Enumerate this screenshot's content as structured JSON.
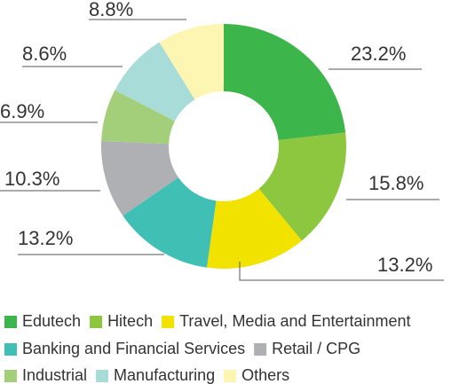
{
  "chart_data": {
    "type": "donut",
    "categories": [
      "Edutech",
      "Hitech",
      "Travel, Media and Entertainment",
      "Banking and Financial Services",
      "Retail / CPG",
      "Industrial",
      "Manufacturing",
      "Others"
    ],
    "values": [
      23.2,
      15.8,
      13.2,
      13.2,
      10.3,
      6.9,
      8.6,
      8.8
    ],
    "value_labels": [
      "23.2%",
      "15.8%",
      "13.2%",
      "13.2%",
      "10.3%",
      "6.9%",
      "8.6%",
      "8.8%"
    ],
    "colors": [
      "#3cb64a",
      "#8dc63f",
      "#f2e200",
      "#40bfb4",
      "#aeb0b3",
      "#a4cf7a",
      "#a8dcd8",
      "#fdf5b2"
    ]
  }
}
